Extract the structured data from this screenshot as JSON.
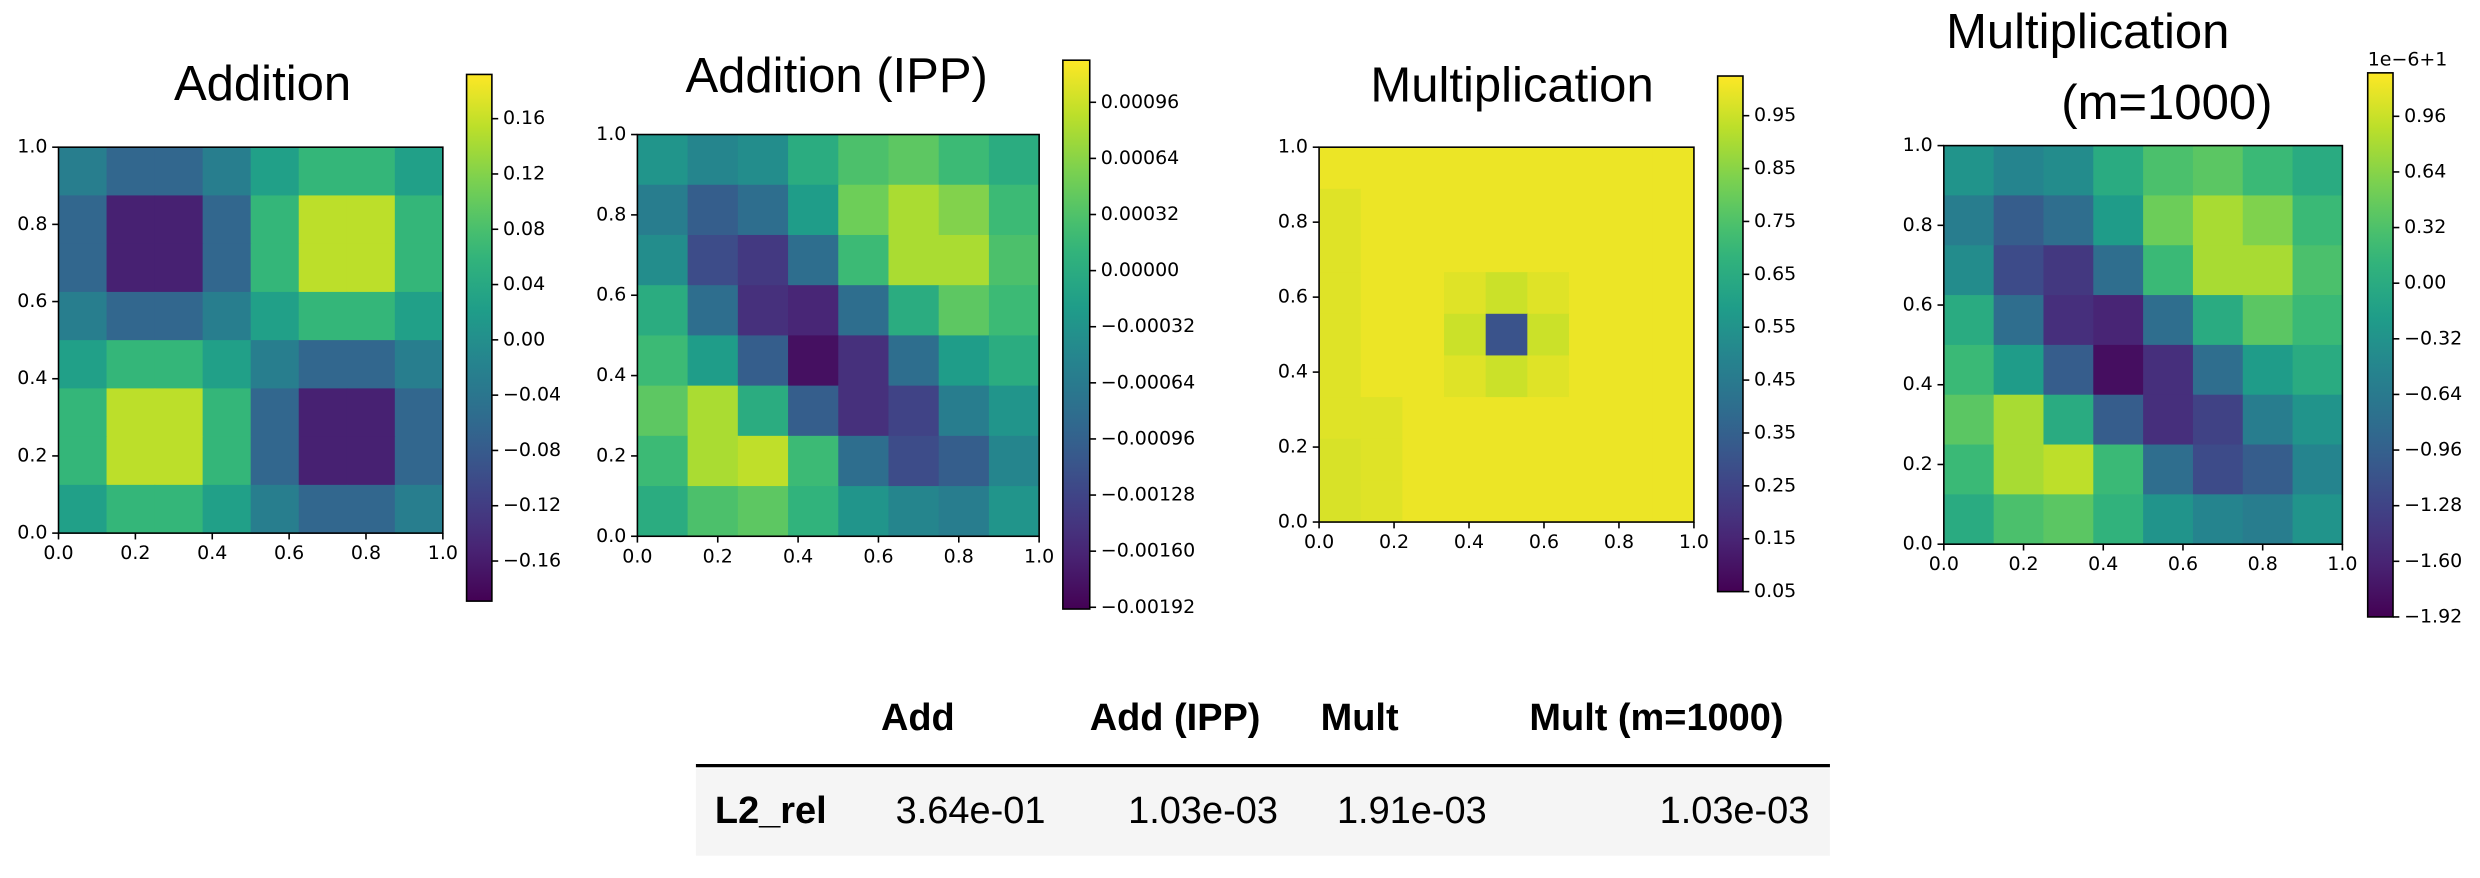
{
  "chart_data": [
    {
      "type": "heatmap",
      "title": "Addition",
      "cmap": "viridis",
      "xlim": [
        0,
        1
      ],
      "ylim": [
        0,
        1
      ],
      "xticks": [
        {
          "value": 0,
          "label": "0.0"
        },
        0.2,
        0.4,
        0.6,
        0.8,
        {
          "value": 1,
          "label": "1.0"
        }
      ],
      "yticks": [
        {
          "value": 0,
          "label": "0.0"
        },
        0.2,
        0.4,
        0.6,
        0.8,
        {
          "value": 1,
          "label": "1.0"
        }
      ],
      "clim": [
        -0.189,
        0.192
      ],
      "cticks": [
        {
          "value": -0.16,
          "label": "−0.16"
        },
        {
          "value": -0.12,
          "label": "−0.12"
        },
        {
          "value": -0.08,
          "label": "−0.08"
        },
        {
          "value": -0.04,
          "label": "−0.04"
        },
        {
          "value": 0,
          "label": "0.00"
        },
        0.04,
        0.08,
        0.12,
        0.16
      ],
      "z": [
        [
          -0.026,
          -0.064,
          -0.064,
          -0.026,
          0.026,
          0.064,
          0.064,
          0.026
        ],
        [
          -0.064,
          -0.154,
          -0.154,
          -0.064,
          0.064,
          0.154,
          0.154,
          0.064
        ],
        [
          -0.064,
          -0.154,
          -0.154,
          -0.064,
          0.064,
          0.154,
          0.154,
          0.064
        ],
        [
          -0.026,
          -0.064,
          -0.064,
          -0.026,
          0.026,
          0.064,
          0.064,
          0.026
        ],
        [
          0.026,
          0.064,
          0.064,
          0.026,
          -0.026,
          -0.064,
          -0.064,
          -0.026
        ],
        [
          0.064,
          0.154,
          0.154,
          0.064,
          -0.064,
          -0.154,
          -0.154,
          -0.064
        ],
        [
          0.064,
          0.154,
          0.154,
          0.064,
          -0.064,
          -0.154,
          -0.154,
          -0.064
        ],
        [
          0.026,
          0.064,
          0.064,
          0.026,
          -0.026,
          -0.064,
          -0.064,
          -0.026
        ]
      ]
    },
    {
      "type": "heatmap",
      "title": "Addition (IPP)",
      "cmap": "viridis",
      "xlim": [
        0,
        1
      ],
      "ylim": [
        0,
        1
      ],
      "xticks": [
        {
          "value": 0,
          "label": "0.0"
        },
        0.2,
        0.4,
        0.6,
        0.8,
        {
          "value": 1,
          "label": "1.0"
        }
      ],
      "yticks": [
        {
          "value": 0,
          "label": "0.0"
        },
        0.2,
        0.4,
        0.6,
        0.8,
        {
          "value": 1,
          "label": "1.0"
        }
      ],
      "clim": [
        -0.00193,
        0.0012
      ],
      "cticks": [
        {
          "value": -0.00192,
          "label": "−0.00192"
        },
        {
          "value": -0.0016,
          "label": "−0.00160"
        },
        {
          "value": -0.00128,
          "label": "−0.00128"
        },
        {
          "value": -0.00096,
          "label": "−0.00096"
        },
        {
          "value": -0.00064,
          "label": "−0.00064"
        },
        {
          "value": -0.00032,
          "label": "−0.00032"
        },
        {
          "value": 0,
          "label": "0.00000"
        },
        {
          "value": 0.00032,
          "label": "0.00032"
        },
        {
          "value": 0.00064,
          "label": "0.00064"
        },
        {
          "value": 0.00096,
          "label": "0.00096"
        }
      ],
      "z": [
        [
          -0.0003,
          -0.0005,
          -0.0004,
          0.0,
          0.0003,
          0.0004,
          0.0002,
          0.0
        ],
        [
          -0.0006,
          -0.001,
          -0.0008,
          -0.0002,
          0.0005,
          0.0008,
          0.0006,
          0.0002
        ],
        [
          -0.0004,
          -0.0012,
          -0.0014,
          -0.0008,
          0.0002,
          0.0008,
          0.0008,
          0.0003
        ],
        [
          0.0,
          -0.0008,
          -0.0015,
          -0.0016,
          -0.0008,
          0.0,
          0.0004,
          0.0002
        ],
        [
          0.0002,
          -0.0002,
          -0.001,
          -0.0018,
          -0.0015,
          -0.0008,
          -0.0002,
          0.0
        ],
        [
          0.0004,
          0.0008,
          0.0,
          -0.001,
          -0.0015,
          -0.0013,
          -0.0006,
          -0.0003
        ],
        [
          0.0002,
          0.0008,
          0.0009,
          0.0002,
          -0.0008,
          -0.0012,
          -0.001,
          -0.0005
        ],
        [
          0.0,
          0.0003,
          0.0004,
          0.0001,
          -0.0003,
          -0.0005,
          -0.0006,
          -0.0003
        ]
      ]
    },
    {
      "type": "heatmap",
      "title": "Multiplication",
      "cmap": "viridis",
      "xlim": [
        0,
        1
      ],
      "ylim": [
        0,
        1
      ],
      "xticks": [
        {
          "value": 0,
          "label": "0.0"
        },
        0.2,
        0.4,
        0.6,
        0.8,
        {
          "value": 1,
          "label": "1.0"
        }
      ],
      "yticks": [
        {
          "value": 0,
          "label": "0.0"
        },
        0.2,
        0.4,
        0.6,
        0.8,
        {
          "value": 1,
          "label": "1.0"
        }
      ],
      "clim": [
        0.05,
        1.025
      ],
      "cticks": [
        0.05,
        0.15,
        0.25,
        0.35,
        0.45,
        0.55,
        0.65,
        0.75,
        0.85,
        0.95
      ],
      "z": [
        [
          1.0,
          1.0,
          1.0,
          1.0,
          1.0,
          1.0,
          1.0,
          1.0,
          1.0
        ],
        [
          0.98,
          1.0,
          1.0,
          1.0,
          1.0,
          1.0,
          1.0,
          1.0,
          1.0
        ],
        [
          0.98,
          1.0,
          1.0,
          1.0,
          1.0,
          1.0,
          1.0,
          1.0,
          1.0
        ],
        [
          0.98,
          1.0,
          1.0,
          0.98,
          0.95,
          0.98,
          1.0,
          1.0,
          1.0
        ],
        [
          0.98,
          1.0,
          1.0,
          0.95,
          0.3,
          0.95,
          1.0,
          1.0,
          1.0
        ],
        [
          0.98,
          1.0,
          1.0,
          0.98,
          0.95,
          0.98,
          1.0,
          1.0,
          1.0
        ],
        [
          0.98,
          0.98,
          1.0,
          1.0,
          1.0,
          1.0,
          1.0,
          1.0,
          1.0
        ],
        [
          0.97,
          0.98,
          1.0,
          1.0,
          1.0,
          1.0,
          1.0,
          1.0,
          1.0
        ],
        [
          0.97,
          0.98,
          1.0,
          1.0,
          1.0,
          1.0,
          1.0,
          1.0,
          1.0
        ]
      ]
    },
    {
      "type": "heatmap",
      "title": [
        "Multiplication",
        "(m=1000)"
      ],
      "cmap": "viridis",
      "offset_text": "1e−6+1",
      "xlim": [
        0,
        1
      ],
      "ylim": [
        0,
        1
      ],
      "xticks": [
        {
          "value": 0,
          "label": "0.0"
        },
        0.2,
        0.4,
        0.6,
        0.8,
        {
          "value": 1,
          "label": "1.0"
        }
      ],
      "yticks": [
        {
          "value": 0,
          "label": "0.0"
        },
        0.2,
        0.4,
        0.6,
        0.8,
        {
          "value": 1,
          "label": "1.0"
        }
      ],
      "clim": [
        -1.92,
        1.21
      ],
      "cticks": [
        {
          "value": -1.92,
          "label": "−1.92"
        },
        {
          "value": -1.6,
          "label": "−1.60"
        },
        {
          "value": -1.28,
          "label": "−1.28"
        },
        {
          "value": -0.96,
          "label": "−0.96"
        },
        {
          "value": -0.64,
          "label": "−0.64"
        },
        {
          "value": -0.32,
          "label": "−0.32"
        },
        {
          "value": 0,
          "label": "0.00"
        },
        0.32,
        0.64,
        0.96
      ],
      "z": [
        [
          -0.3,
          -0.5,
          -0.4,
          0.0,
          0.3,
          0.4,
          0.2,
          0.0
        ],
        [
          -0.6,
          -1.0,
          -0.8,
          -0.2,
          0.5,
          0.8,
          0.6,
          0.2
        ],
        [
          -0.4,
          -1.2,
          -1.4,
          -0.8,
          0.2,
          0.8,
          0.8,
          0.3
        ],
        [
          0.0,
          -0.8,
          -1.5,
          -1.6,
          -0.8,
          0.0,
          0.4,
          0.2
        ],
        [
          0.2,
          -0.2,
          -1.0,
          -1.8,
          -1.5,
          -0.8,
          -0.2,
          0.0
        ],
        [
          0.4,
          0.8,
          0.0,
          -1.0,
          -1.5,
          -1.3,
          -0.6,
          -0.3
        ],
        [
          0.2,
          0.8,
          0.9,
          0.2,
          -0.8,
          -1.2,
          -1.0,
          -0.5
        ],
        [
          0.0,
          0.3,
          0.4,
          0.1,
          -0.3,
          -0.5,
          -0.6,
          -0.3
        ]
      ]
    }
  ],
  "table": {
    "columns": [
      "Add",
      "Add (IPP)",
      "Mult",
      "Mult (m=1000)"
    ],
    "rows": [
      {
        "label": "L2_rel",
        "values": [
          "3.64e-01",
          "1.03e-03",
          "1.91e-03",
          "1.03e-03"
        ]
      }
    ]
  }
}
